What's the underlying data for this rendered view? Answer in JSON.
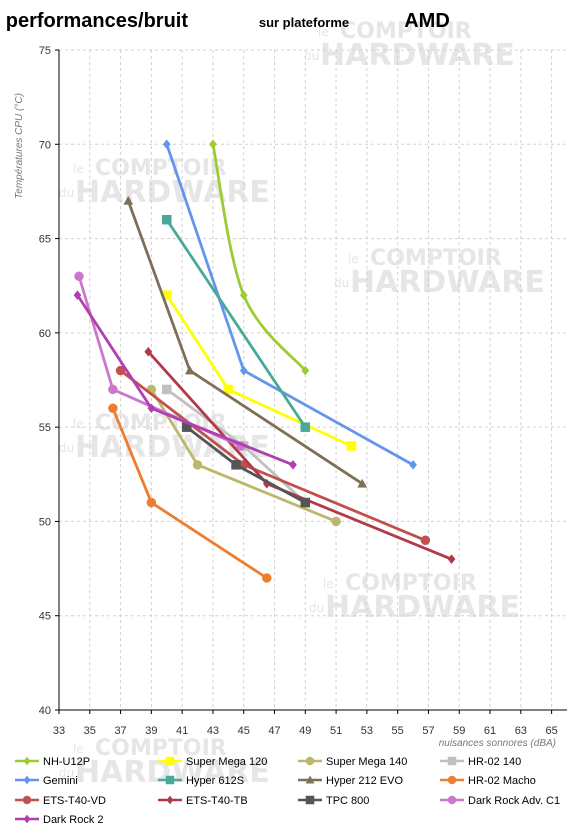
{
  "chart_data": {
    "type": "line",
    "title": "performances/bruit",
    "subtitle_prefix": "sur plateforme",
    "subtitle_platform": "AMD",
    "xlabel": "nuisances sonnores (dBA)",
    "ylabel": "Températures CPU (°C)",
    "xlim": [
      33,
      66
    ],
    "ylim": [
      40,
      75
    ],
    "x_ticks": [
      33,
      35,
      37,
      39,
      41,
      43,
      45,
      47,
      49,
      51,
      53,
      55,
      57,
      59,
      61,
      63,
      65
    ],
    "y_ticks": [
      40,
      45,
      50,
      55,
      60,
      65,
      70,
      75
    ],
    "grid": true,
    "legend_position": "bottom",
    "watermark": {
      "line1": "COMPTOIR",
      "line2": "HARDWARE",
      "le": "le",
      "du": "du"
    },
    "series": [
      {
        "name": "NH-U12P",
        "color": "#9ACD32",
        "marker": "diamond",
        "smooth": true,
        "points": [
          [
            43,
            70
          ],
          [
            45,
            62
          ],
          [
            49,
            58
          ]
        ]
      },
      {
        "name": "Super Mega 120",
        "color": "#FFFF00",
        "marker": "square",
        "smooth": false,
        "points": [
          [
            40,
            62
          ],
          [
            44,
            57
          ],
          [
            52,
            54
          ]
        ]
      },
      {
        "name": "Super Mega 140",
        "color": "#BDB76B",
        "marker": "circle",
        "smooth": false,
        "points": [
          [
            39,
            57
          ],
          [
            42,
            53
          ],
          [
            51,
            50
          ]
        ]
      },
      {
        "name": "HR-02 140",
        "color": "#C0C0C0",
        "marker": "square",
        "smooth": false,
        "points": [
          [
            40,
            57
          ],
          [
            45,
            54
          ],
          [
            49,
            51
          ]
        ]
      },
      {
        "name": "Gemini",
        "color": "#6495ED",
        "marker": "diamond",
        "smooth": false,
        "points": [
          [
            40,
            70
          ],
          [
            45,
            58
          ],
          [
            56,
            53
          ]
        ]
      },
      {
        "name": "Hyper 612S",
        "color": "#48A99A",
        "marker": "square",
        "smooth": false,
        "points": [
          [
            40,
            66
          ],
          [
            49,
            55
          ]
        ]
      },
      {
        "name": "Hyper 212 EVO",
        "color": "#7F6F57",
        "marker": "triangle",
        "smooth": false,
        "points": [
          [
            37.5,
            67
          ],
          [
            41.5,
            58
          ],
          [
            52.7,
            52
          ]
        ]
      },
      {
        "name": "HR-02 Macho",
        "color": "#ED7D31",
        "marker": "circle",
        "smooth": false,
        "points": [
          [
            36.5,
            56
          ],
          [
            39,
            51
          ],
          [
            46.5,
            47
          ]
        ]
      },
      {
        "name": "ETS-T40-VD",
        "color": "#C0504D",
        "marker": "circle",
        "smooth": false,
        "points": [
          [
            37,
            58
          ],
          [
            45,
            53
          ],
          [
            56.8,
            49
          ]
        ]
      },
      {
        "name": "ETS-T40-TB",
        "color": "#B03A48",
        "marker": "diamond",
        "smooth": false,
        "points": [
          [
            38.8,
            59
          ],
          [
            46.5,
            52
          ],
          [
            58.5,
            48
          ]
        ]
      },
      {
        "name": "TPC 800",
        "color": "#555555",
        "marker": "square",
        "smooth": false,
        "points": [
          [
            41.3,
            55
          ],
          [
            44.5,
            53
          ],
          [
            49,
            51
          ]
        ]
      },
      {
        "name": "Dark Rock Adv. C1",
        "color": "#CC77CC",
        "marker": "circle",
        "smooth": false,
        "points": [
          [
            34.3,
            63
          ],
          [
            36.5,
            57
          ],
          [
            44.8,
            54
          ]
        ]
      },
      {
        "name": "Dark Rock 2",
        "color": "#B03FB0",
        "marker": "diamond",
        "smooth": false,
        "points": [
          [
            34.2,
            62
          ],
          [
            39,
            56
          ],
          [
            48.2,
            53
          ]
        ]
      }
    ]
  }
}
